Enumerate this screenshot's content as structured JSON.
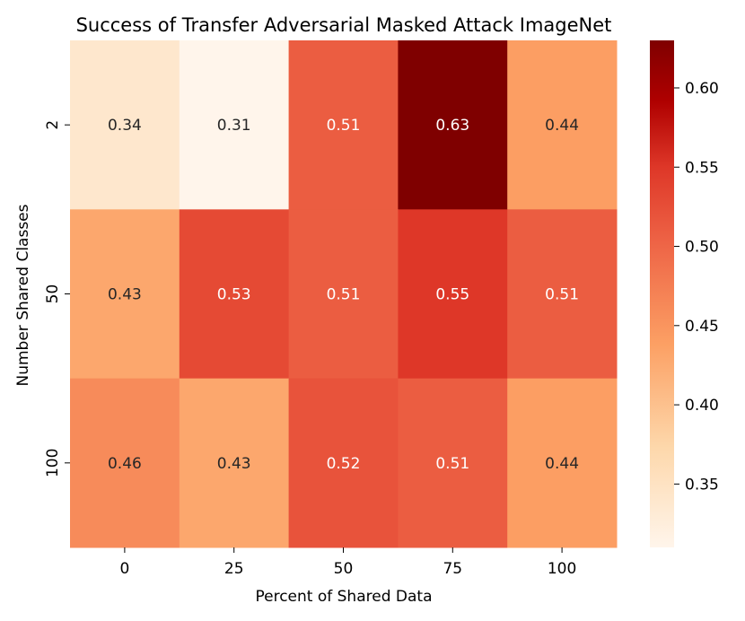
{
  "chart_data": {
    "type": "heatmap",
    "title": "Success of Transfer Adversarial Masked Attack ImageNet",
    "xlabel": "Percent of Shared Data",
    "ylabel": "Number Shared Classes",
    "x_categories": [
      "0",
      "25",
      "50",
      "75",
      "100"
    ],
    "y_categories": [
      "2",
      "50",
      "100"
    ],
    "values": [
      [
        0.34,
        0.31,
        0.51,
        0.63,
        0.44
      ],
      [
        0.43,
        0.53,
        0.51,
        0.55,
        0.51
      ],
      [
        0.46,
        0.43,
        0.52,
        0.51,
        0.44
      ]
    ],
    "value_labels": [
      [
        "0.34",
        "0.31",
        "0.51",
        "0.63",
        "0.44"
      ],
      [
        "0.43",
        "0.53",
        "0.51",
        "0.55",
        "0.51"
      ],
      [
        "0.46",
        "0.43",
        "0.52",
        "0.51",
        "0.44"
      ]
    ],
    "colormap": "Oranges/Reds (OrRd-like, light cream to dark maroon)",
    "color_min": 0.31,
    "color_max": 0.63,
    "colorbar_ticks": [
      0.35,
      0.4,
      0.45,
      0.5,
      0.55,
      0.6
    ],
    "colorbar_tick_labels": [
      "0.35",
      "0.40",
      "0.45",
      "0.50",
      "0.55",
      "0.60"
    ],
    "colors": {
      "low": "#fff5eb",
      "mid_low": "#fdd0a2",
      "mid": "#fd8d3c",
      "mid_high": "#e34a33",
      "high": "#7f0000"
    }
  }
}
